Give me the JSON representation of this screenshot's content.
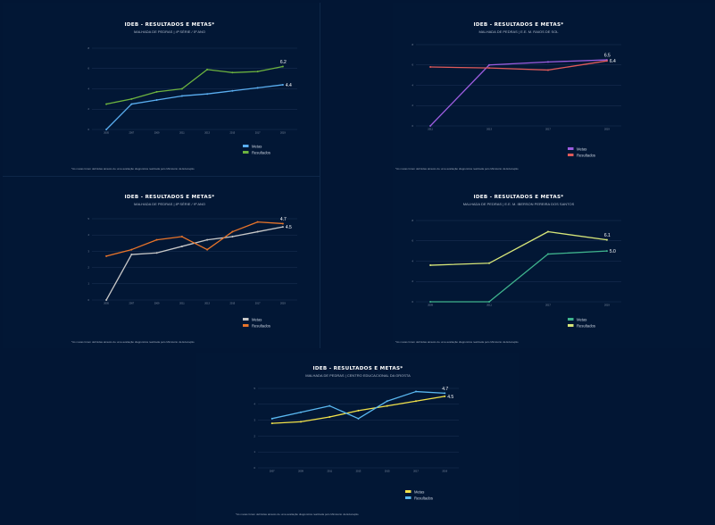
{
  "chart_data": [
    {
      "type": "line",
      "title": "IDEB - RESULTADOS E METAS*",
      "subtitle": "MALHADA DE PEDRAS | 4ª SÉRIE / 5º ANO",
      "categories": [
        "2005",
        "2007",
        "2009",
        "2011",
        "2013",
        "2015",
        "2017",
        "2019"
      ],
      "ylim": [
        0,
        8
      ],
      "yticks": [
        "0",
        "2",
        "4",
        "6",
        "8"
      ],
      "series": [
        {
          "name": "Metas",
          "color": "#5aaef0",
          "values": [
            0,
            2.5,
            2.9,
            3.3,
            3.5,
            3.8,
            4.1,
            4.4
          ]
        },
        {
          "name": "Resultados",
          "color": "#6db33f",
          "values": [
            2.5,
            3.0,
            3.7,
            4.0,
            5.9,
            5.6,
            5.7,
            6.2
          ]
        }
      ],
      "end_labels": [
        "6.2",
        "4.4"
      ],
      "footnote": "*As metas foram definidas através de uma avaliação diagnóstica realizada pelo Ministério da Educação"
    },
    {
      "type": "line",
      "title": "IDEB - RESULTADOS E METAS*",
      "subtitle": "MALHADA DE PEDRAS | E.E. M. RAIOS DE SOL",
      "categories": [
        "2011",
        "2013",
        "2017",
        "2019"
      ],
      "ylim": [
        0,
        8
      ],
      "yticks": [
        "0",
        "2",
        "4",
        "6",
        "8"
      ],
      "series": [
        {
          "name": "Metas",
          "color": "#9c5de0",
          "values": [
            0,
            6.0,
            6.3,
            6.5
          ]
        },
        {
          "name": "Resultados",
          "color": "#e05a5a",
          "values": [
            5.8,
            5.7,
            5.5,
            6.4
          ]
        }
      ],
      "end_labels": [
        "6.5",
        "6.4"
      ],
      "footnote": "*As metas foram definidas através de uma avaliação diagnóstica realizada pelo Ministério da Educação"
    },
    {
      "type": "line",
      "title": "IDEB - RESULTADOS E METAS*",
      "subtitle": "MALHADA DE PEDRAS | 8ª SÉRIE / 9º ANO",
      "categories": [
        "2005",
        "2007",
        "2009",
        "2011",
        "2013",
        "2015",
        "2017",
        "2019"
      ],
      "ylim": [
        0,
        5
      ],
      "yticks": [
        "0",
        "1",
        "2",
        "3",
        "4",
        "5"
      ],
      "series": [
        {
          "name": "Metas",
          "color": "#c7c7c7",
          "values": [
            0,
            2.8,
            2.9,
            3.3,
            3.7,
            3.9,
            4.2,
            4.5
          ]
        },
        {
          "name": "Resultados",
          "color": "#e8742a",
          "values": [
            2.7,
            3.1,
            3.7,
            3.9,
            3.1,
            4.2,
            4.8,
            4.7
          ]
        }
      ],
      "end_labels": [
        "4.7",
        "4.5"
      ],
      "footnote": "*As metas foram definidas através de uma avaliação diagnóstica realizada pelo Ministério da Educação"
    },
    {
      "type": "line",
      "title": "IDEB - RESULTADOS E METAS*",
      "subtitle": "MALHADA DE PEDRAS | E.E. M. IBERSON PEREIRA DOS SANTOS",
      "categories": [
        "2009",
        "2011",
        "2017",
        "2019"
      ],
      "ylim": [
        0,
        8
      ],
      "yticks": [
        "0",
        "2",
        "4",
        "6",
        "8"
      ],
      "series": [
        {
          "name": "Metas",
          "color": "#3fb38d",
          "values": [
            0,
            0,
            4.7,
            5.0
          ]
        },
        {
          "name": "Resultados",
          "color": "#d7e679",
          "values": [
            3.6,
            3.8,
            6.9,
            6.1
          ]
        }
      ],
      "end_labels": [
        "6.1",
        "5.0"
      ],
      "footnote": "*As metas foram definidas através de uma avaliação diagnóstica realizada pelo Ministério da Educação"
    },
    {
      "type": "line",
      "title": "IDEB - RESULTADOS E METAS*",
      "subtitle": "MALHADA DE PEDRAS | CENTRO EDUCACIONAL DA GROSTA",
      "categories": [
        "2007",
        "2009",
        "2011",
        "2013",
        "2015",
        "2017",
        "2019"
      ],
      "ylim": [
        0,
        5
      ],
      "yticks": [
        "0",
        "1",
        "2",
        "3",
        "4",
        "5"
      ],
      "series": [
        {
          "name": "Metas",
          "color": "#f2e24a",
          "values": [
            2.8,
            2.9,
            3.2,
            3.6,
            3.9,
            4.2,
            4.5
          ]
        },
        {
          "name": "Resultados",
          "color": "#5ab8f0",
          "values": [
            3.1,
            3.5,
            3.9,
            3.1,
            4.2,
            4.8,
            4.7
          ]
        }
      ],
      "end_labels": [
        "4.7",
        "4.5"
      ],
      "footnote": "*As metas foram definidas através de uma avaliação diagnóstica realizada pelo Ministério da Educação"
    }
  ]
}
